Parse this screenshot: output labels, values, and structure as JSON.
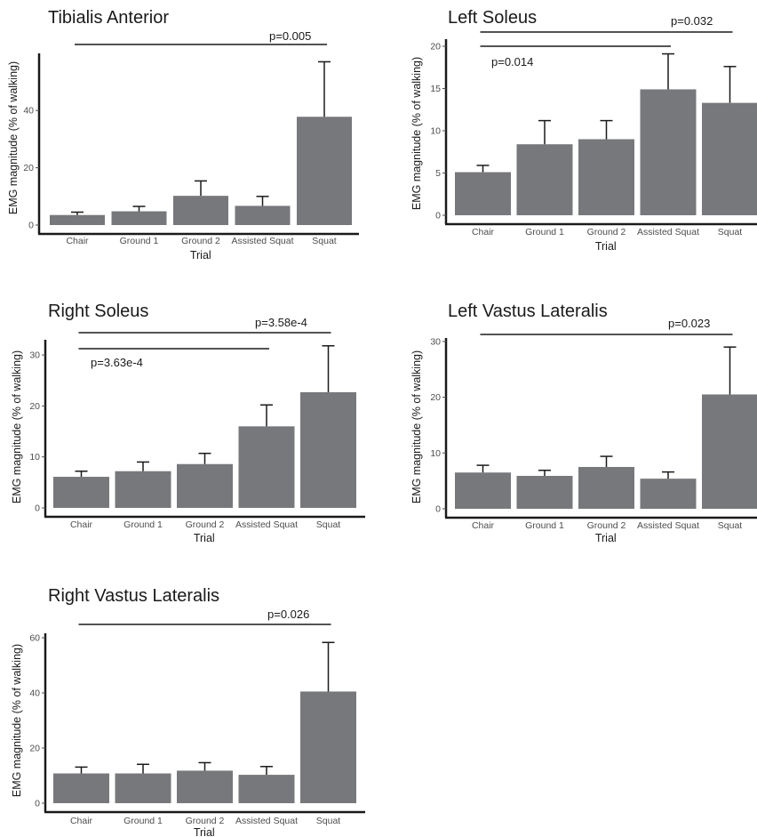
{
  "chart_data": [
    {
      "type": "bar",
      "title": "Tibialis Anterior",
      "xlabel": "Trial",
      "ylabel": "EMG magnitude (% of walking)",
      "categories": [
        "Chair",
        "Ground 1",
        "Ground 2",
        "Assisted Squat",
        "Squat"
      ],
      "values": [
        3.5,
        4.8,
        10.2,
        6.7,
        37.8
      ],
      "errors": [
        1.0,
        1.7,
        5.2,
        3.3,
        19.2
      ],
      "yticks": [
        0,
        20,
        40
      ],
      "ylim": [
        0,
        60
      ],
      "bar_color": "#77787b",
      "significance": [
        {
          "from": "Chair",
          "to": "Squat",
          "label": "p=0.005",
          "label_position": "above"
        }
      ]
    },
    {
      "type": "bar",
      "title": "Left Soleus",
      "xlabel": "Trial",
      "ylabel": "EMG magnitude (% of walking)",
      "categories": [
        "Chair",
        "Ground 1",
        "Ground 2",
        "Assisted Squat",
        "Squat"
      ],
      "values": [
        5.1,
        8.4,
        9.0,
        14.9,
        13.3
      ],
      "errors": [
        0.8,
        2.8,
        2.2,
        4.2,
        4.3
      ],
      "yticks": [
        0,
        5,
        10,
        15,
        20
      ],
      "ylim": [
        0,
        20
      ],
      "bar_color": "#77787b",
      "significance": [
        {
          "from": "Chair",
          "to": "Squat",
          "label": "p=0.032",
          "label_position": "above"
        },
        {
          "from": "Chair",
          "to": "Assisted Squat",
          "label": "p=0.014",
          "label_position": "below"
        }
      ]
    },
    {
      "type": "bar",
      "title": "Right Soleus",
      "xlabel": "Trial",
      "ylabel": "EMG magnitude (% of walking)",
      "categories": [
        "Chair",
        "Ground 1",
        "Ground 2",
        "Assisted Squat",
        "Squat"
      ],
      "values": [
        6.1,
        7.2,
        8.6,
        16.0,
        22.7
      ],
      "errors": [
        1.1,
        1.8,
        2.1,
        4.2,
        9.1
      ],
      "yticks": [
        0,
        10,
        20,
        30
      ],
      "ylim": [
        0,
        30
      ],
      "bar_color": "#77787b",
      "significance": [
        {
          "from": "Chair",
          "to": "Squat",
          "label": "p=3.58e-4",
          "label_position": "above"
        },
        {
          "from": "Chair",
          "to": "Assisted Squat",
          "label": "p=3.63e-4",
          "label_position": "below"
        }
      ]
    },
    {
      "type": "bar",
      "title": "Left Vastus Lateralis",
      "xlabel": "Trial",
      "ylabel": "EMG magnitude (% of walking)",
      "categories": [
        "Chair",
        "Ground 1",
        "Ground 2",
        "Assisted Squat",
        "Squat"
      ],
      "values": [
        6.5,
        5.9,
        7.5,
        5.4,
        20.5
      ],
      "errors": [
        1.3,
        1.0,
        1.9,
        1.2,
        8.5
      ],
      "yticks": [
        0,
        10,
        20,
        30
      ],
      "ylim": [
        0,
        30
      ],
      "bar_color": "#77787b",
      "significance": [
        {
          "from": "Chair",
          "to": "Squat",
          "label": "p=0.023",
          "label_position": "above"
        }
      ]
    },
    {
      "type": "bar",
      "title": "Right Vastus Lateralis",
      "xlabel": "Trial",
      "ylabel": "EMG magnitude (% of walking)",
      "categories": [
        "Chair",
        "Ground 1",
        "Ground 2",
        "Assisted Squat",
        "Squat"
      ],
      "values": [
        10.8,
        10.8,
        11.8,
        10.3,
        40.5
      ],
      "errors": [
        2.3,
        3.3,
        2.9,
        3.0,
        17.8
      ],
      "yticks": [
        0,
        20,
        40,
        60
      ],
      "ylim": [
        0,
        60
      ],
      "bar_color": "#77787b",
      "significance": [
        {
          "from": "Chair",
          "to": "Squat",
          "label": "p=0.026",
          "label_position": "above"
        }
      ]
    }
  ]
}
